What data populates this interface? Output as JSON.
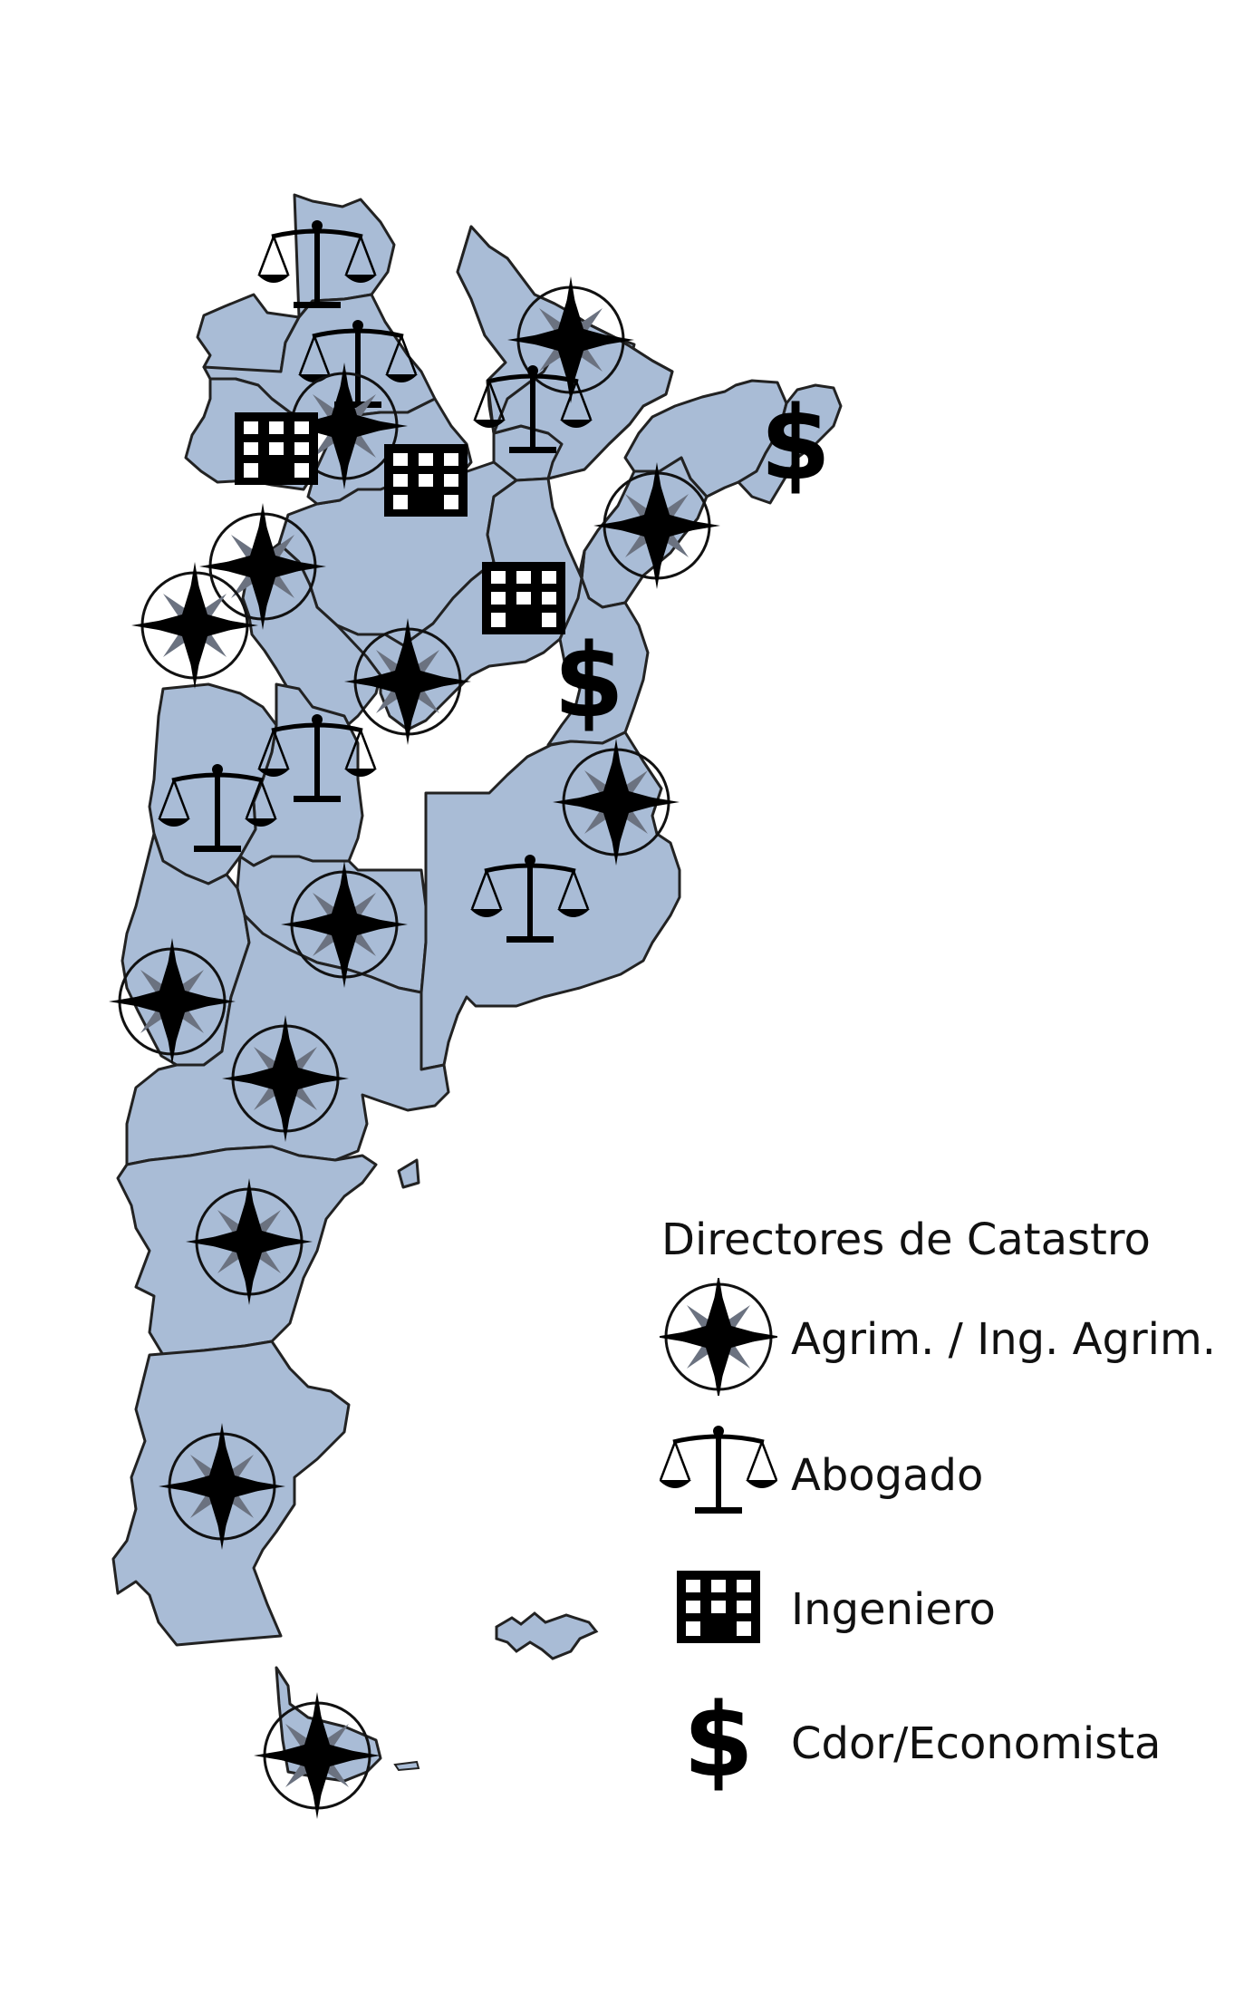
{
  "legend": {
    "title": "Directores de Catastro",
    "items": [
      {
        "icon": "compass-rose-icon",
        "label": "Agrim. / Ing. Agrim."
      },
      {
        "icon": "scales-of-justice-icon",
        "label": "Abogado"
      },
      {
        "icon": "building-icon",
        "label": "Ingeniero"
      },
      {
        "icon": "dollar-sign-icon",
        "label": "Cdor/Economista"
      }
    ]
  },
  "colors": {
    "land": "#a9bcd6",
    "border": "#222222",
    "symbol": "#000000",
    "compass_accent": "#6b7280"
  },
  "provinces": [
    {
      "profession": "abogado"
    },
    {
      "profession": "abogado"
    },
    {
      "profession": "agrimensor"
    },
    {
      "profession": "agrimensor"
    },
    {
      "profession": "ingeniero"
    },
    {
      "profession": "ingeniero"
    },
    {
      "profession": "abogado"
    },
    {
      "profession": "cdor-economista"
    },
    {
      "profession": "agrimensor"
    },
    {
      "profession": "agrimensor"
    },
    {
      "profession": "agrimensor"
    },
    {
      "profession": "ingeniero"
    },
    {
      "profession": "agrimensor"
    },
    {
      "profession": "cdor-economista"
    },
    {
      "profession": "abogado"
    },
    {
      "profession": "abogado"
    },
    {
      "profession": "agrimensor"
    },
    {
      "profession": "abogado"
    },
    {
      "profession": "agrimensor"
    },
    {
      "profession": "agrimensor"
    },
    {
      "profession": "agrimensor"
    },
    {
      "profession": "agrimensor"
    },
    {
      "profession": "agrimensor"
    },
    {
      "profession": "agrimensor"
    }
  ]
}
